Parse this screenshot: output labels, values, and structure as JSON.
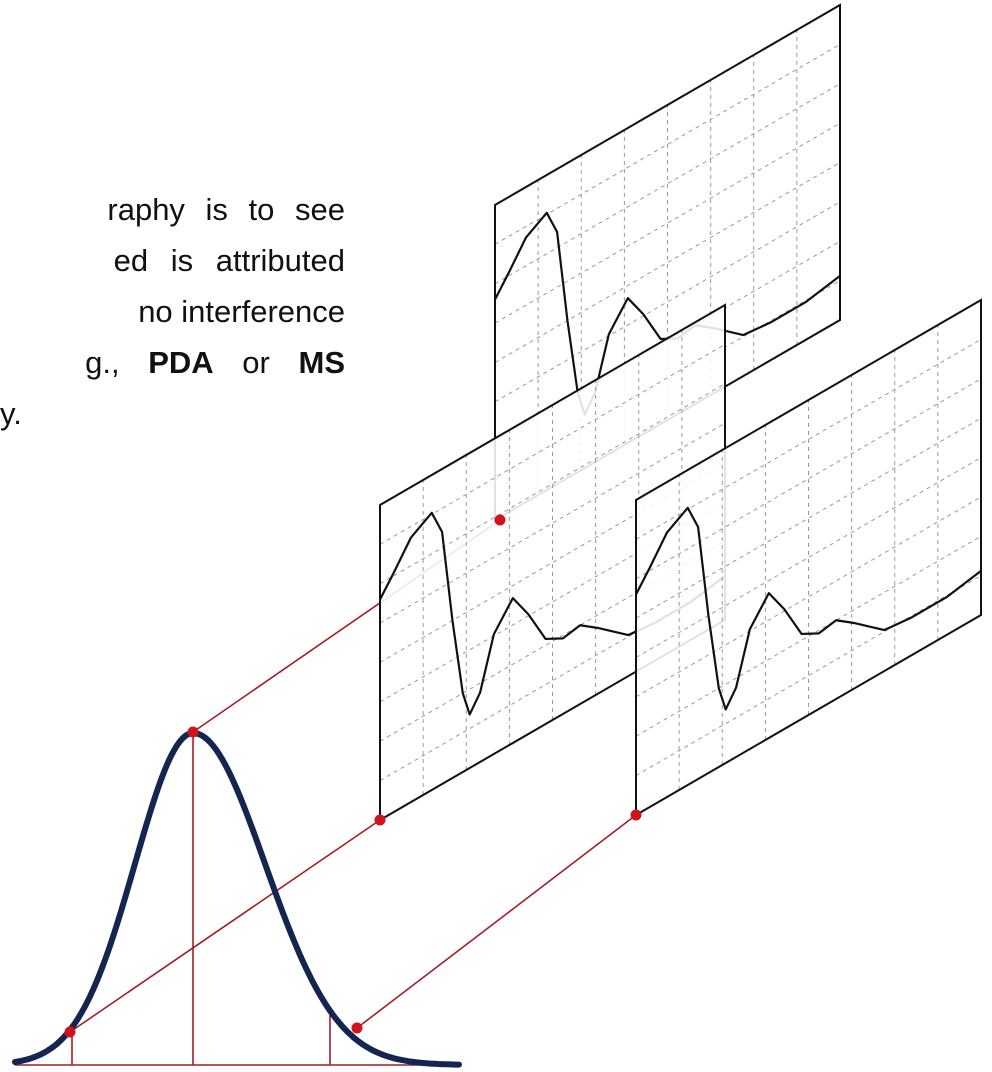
{
  "text": {
    "line_1": "raphy is to see",
    "line_2": "ed is attributed",
    "line_3": "no interference",
    "line_4": [
      "g.,",
      "PDA",
      "or",
      "MS"
    ],
    "line_5": "y."
  }
}
